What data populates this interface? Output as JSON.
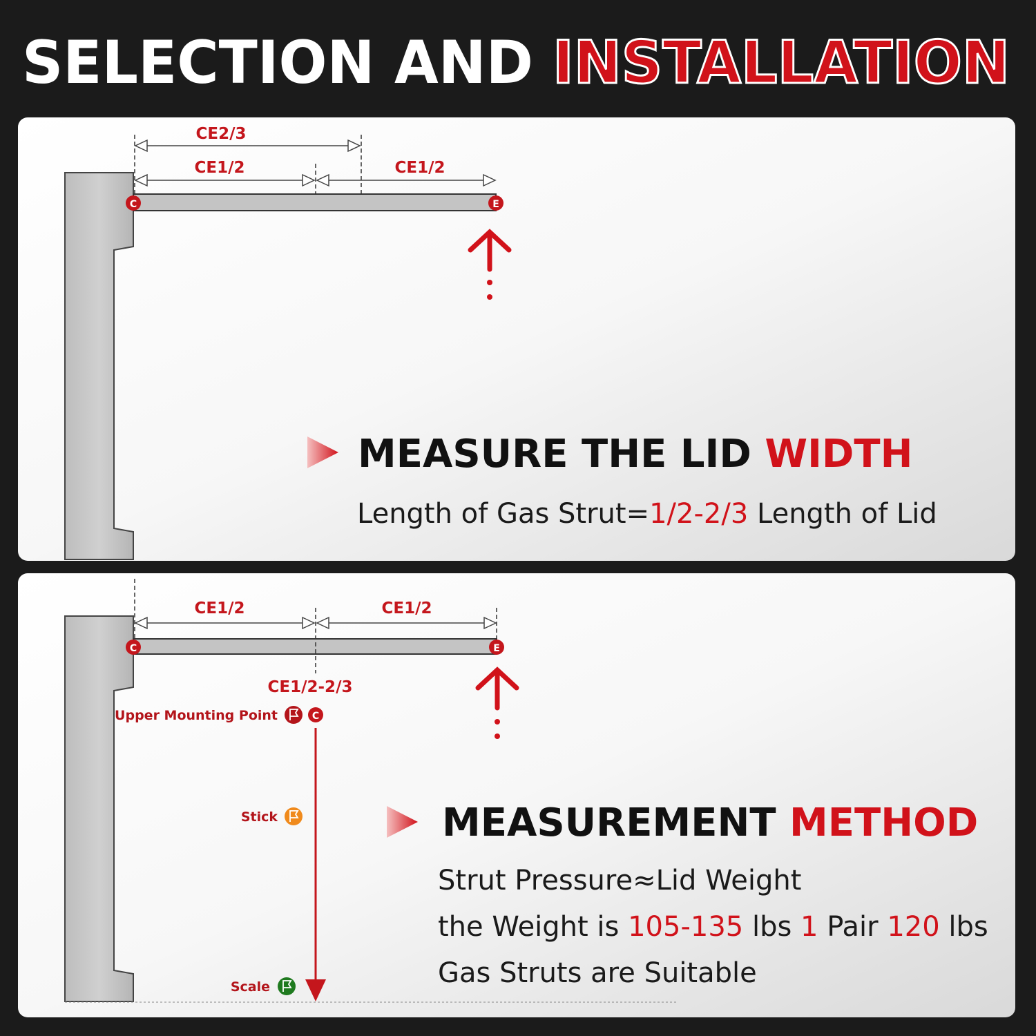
{
  "title": {
    "part1": "SELECTION AND",
    "part2": "INSTALLATION"
  },
  "colors": {
    "accent_red": "#d1121a",
    "background": "#1b1b1b",
    "panel": "#f2f2f2",
    "orange": "#f08a1c",
    "green": "#1f7a1f"
  },
  "panel1": {
    "dim_top": "CE2/3",
    "dim_left": "CE1/2",
    "dim_right": "CE1/2",
    "point_c": "C",
    "point_e": "E",
    "heading_black": "MEASURE THE LID",
    "heading_red": "WIDTH",
    "formula_a": "Length of Gas Strut=",
    "formula_b": "1/2-2/3",
    "formula_c": " Length of Lid"
  },
  "panel2": {
    "dim_left": "CE1/2",
    "dim_right": "CE1/2",
    "dim_mount": "CE1/2-2/3",
    "point_c": "C",
    "point_e": "E",
    "upper_mount_label": "Upper Mounting Point",
    "stick_label": "Stick",
    "scale_label": "Scale",
    "heading_black": "MEASUREMENT",
    "heading_red": "METHOD",
    "line1": "Strut Pressure≈Lid Weight",
    "line2_a": "the Weight is ",
    "line2_b": "105-135",
    "line2_c": " lbs ",
    "line2_d": "1",
    "line2_e": " Pair ",
    "line2_f": "120",
    "line2_g": " lbs",
    "line3": "Gas Struts are Suitable"
  },
  "icons": [
    "flag-icon",
    "arrow-up-icon",
    "arrow-down-icon",
    "play-triangle-icon"
  ]
}
